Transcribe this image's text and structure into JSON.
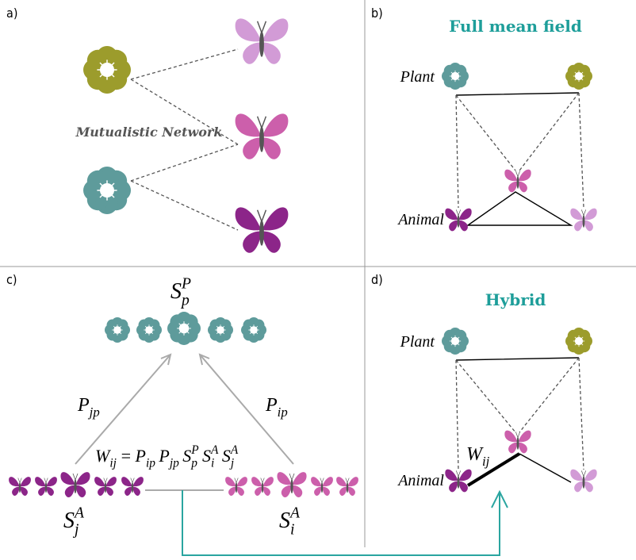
{
  "panels": {
    "a": {
      "label": "a)",
      "network_label": "Mutualistic Network"
    },
    "b": {
      "label": "b)",
      "title": "Full mean field",
      "plant_label": "Plant",
      "animal_label": "Animal"
    },
    "c": {
      "label": "c)",
      "plant_abundance": {
        "base": "S",
        "sub": "p",
        "sup": "P"
      },
      "left_coupling": {
        "base": "P",
        "sub": "jp"
      },
      "right_coupling": {
        "base": "P",
        "sub": "ip"
      },
      "equation": [
        {
          "base": "W",
          "sub": "ij"
        },
        {
          "base": "="
        },
        {
          "base": "P",
          "sub": "ip"
        },
        {
          "base": "P",
          "sub": "jp"
        },
        {
          "base": "S",
          "sub": "p",
          "sup": "P"
        },
        {
          "base": "S",
          "sub": "i",
          "sup": "A"
        },
        {
          "base": "S",
          "sub": "j",
          "sup": "A"
        }
      ],
      "left_animal": {
        "base": "S",
        "sub": "j",
        "sup": "A"
      },
      "right_animal": {
        "base": "S",
        "sub": "i",
        "sup": "A"
      }
    },
    "d": {
      "label": "d)",
      "title": "Hybrid",
      "plant_label": "Plant",
      "animal_label": "Animal",
      "edge_weight": {
        "base": "W",
        "sub": "ij"
      }
    }
  }
}
